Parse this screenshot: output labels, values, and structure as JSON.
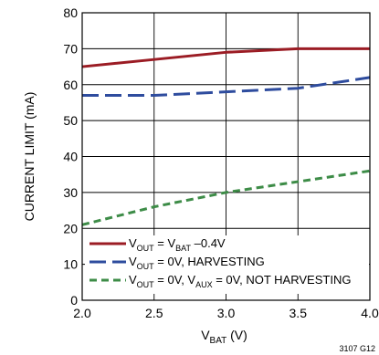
{
  "chart_data": {
    "type": "line",
    "xlabel": {
      "main": "V",
      "sub": "BAT",
      "unit": " (V)"
    },
    "ylabel": "CURRENT LIMIT (mA)",
    "xlim": [
      2.0,
      4.0
    ],
    "ylim": [
      0,
      80
    ],
    "x_ticks": [
      "2.0",
      "2.5",
      "3.0",
      "3.5",
      "4.0"
    ],
    "y_ticks": [
      "0",
      "10",
      "20",
      "30",
      "40",
      "50",
      "60",
      "70",
      "80"
    ],
    "grid": true,
    "legend_position": "bottom-left",
    "series": [
      {
        "legend": [
          {
            "t": "V",
            "s": ""
          },
          {
            "t": "OUT",
            "s": "sub"
          },
          {
            "t": " = V",
            "s": ""
          },
          {
            "t": "BAT",
            "s": "sub"
          },
          {
            "t": " –0.4V",
            "s": ""
          }
        ],
        "color": "#9b1c24",
        "dash": "solid",
        "x": [
          2.0,
          2.5,
          3.0,
          3.5,
          4.0
        ],
        "y": [
          65,
          67,
          69,
          70,
          70
        ]
      },
      {
        "legend": [
          {
            "t": "V",
            "s": ""
          },
          {
            "t": "OUT",
            "s": "sub"
          },
          {
            "t": " = 0V, HARVESTING",
            "s": ""
          }
        ],
        "color": "#2e4c9e",
        "dash": "long-dash",
        "x": [
          2.0,
          2.5,
          3.0,
          3.5,
          4.0
        ],
        "y": [
          57,
          57,
          58,
          59,
          62
        ]
      },
      {
        "legend": [
          {
            "t": "V",
            "s": ""
          },
          {
            "t": "OUT",
            "s": "sub"
          },
          {
            "t": " = 0V, V",
            "s": ""
          },
          {
            "t": "AUX",
            "s": "sub"
          },
          {
            "t": " = 0V, NOT HARVESTING",
            "s": ""
          }
        ],
        "color": "#3d8c47",
        "dash": "short-dash",
        "x": [
          2.0,
          2.5,
          3.0,
          3.5,
          4.0
        ],
        "y": [
          21,
          26,
          30,
          33,
          36
        ]
      }
    ],
    "figure_id": "3107 G12"
  }
}
